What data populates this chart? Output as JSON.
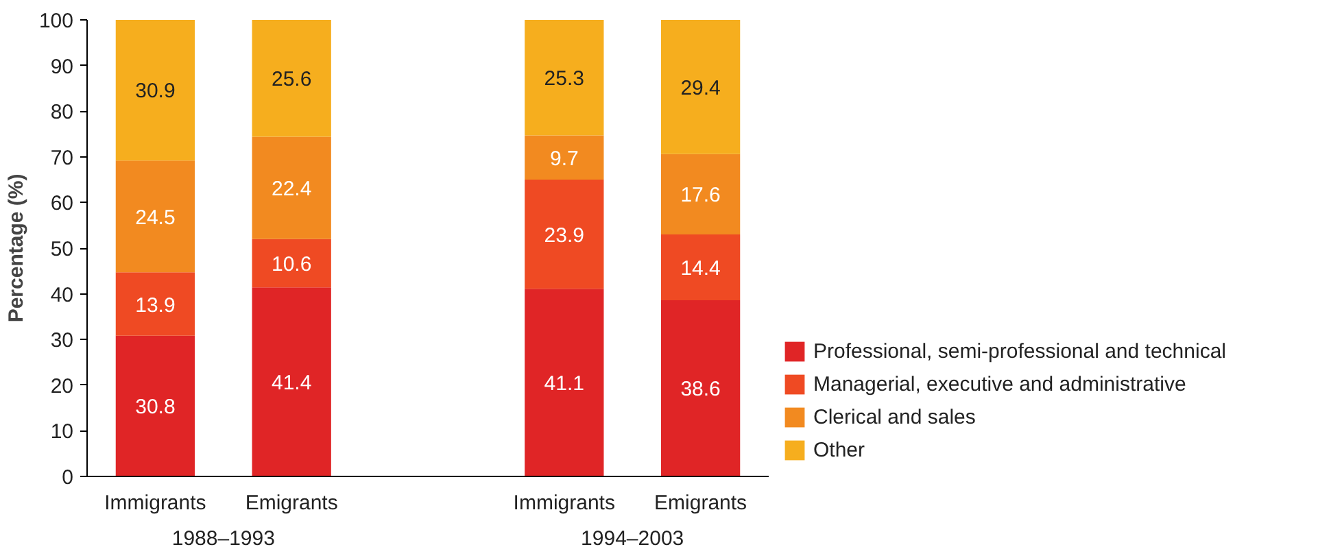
{
  "chart_data": {
    "type": "bar",
    "stacked": true,
    "ylabel": "Percentage (%)",
    "categories": [
      "Immigrants",
      "Emigrants",
      null,
      "Immigrants",
      "Emigrants"
    ],
    "annotations": [
      "1988–1993",
      "1994–2003"
    ],
    "series": [
      {
        "name": "Professional, semi-professional and technical",
        "color": "#e02526",
        "values": [
          30.8,
          41.4,
          null,
          41.1,
          38.6
        ]
      },
      {
        "name": "Managerial, executive and administrative",
        "color": "#ef4a23",
        "values": [
          13.9,
          10.6,
          null,
          23.9,
          14.4
        ]
      },
      {
        "name": "Clerical and sales",
        "color": "#f28a20",
        "values": [
          24.5,
          22.4,
          null,
          9.7,
          17.6
        ]
      },
      {
        "name": "Other",
        "color": "#f6ae1e",
        "values": [
          30.9,
          25.6,
          null,
          25.3,
          29.4
        ]
      }
    ],
    "ylim": [
      0,
      100
    ],
    "yticks": [
      0,
      10,
      20,
      30,
      40,
      50,
      60,
      70,
      80,
      90,
      100
    ],
    "data_labels": true,
    "legend": "right",
    "grid": false
  }
}
